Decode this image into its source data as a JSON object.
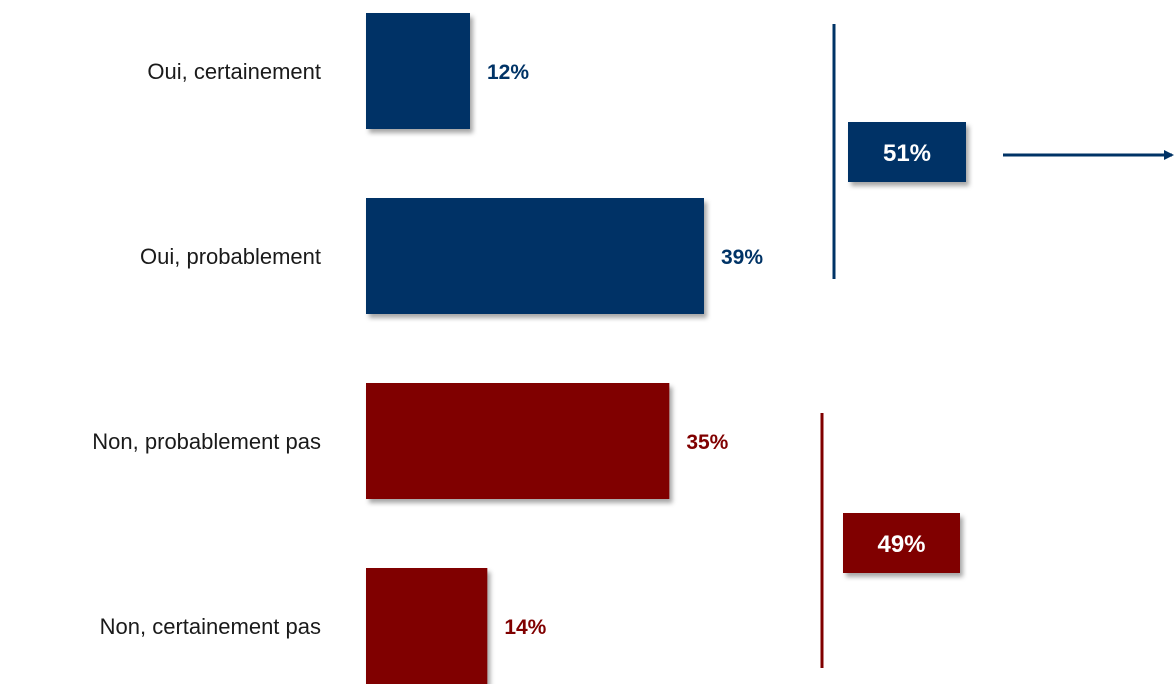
{
  "chart_data": {
    "type": "bar",
    "orientation": "horizontal",
    "categories": [
      "Oui, certainement",
      "Oui, probablement",
      "Non, probablement pas",
      "Non, certainement pas"
    ],
    "values": [
      12,
      39,
      35,
      14
    ],
    "value_labels": [
      "12%",
      "39%",
      "35%",
      "14%"
    ],
    "groups": [
      {
        "members": [
          0,
          1
        ],
        "total": 51,
        "label": "51%",
        "color": "#003366"
      },
      {
        "members": [
          2,
          3
        ],
        "total": 49,
        "label": "49%",
        "color": "#800000"
      }
    ],
    "colors": [
      "#003366",
      "#003366",
      "#800000",
      "#800000"
    ],
    "xlim": [
      0,
      100
    ],
    "grid": false,
    "legend": "none"
  }
}
